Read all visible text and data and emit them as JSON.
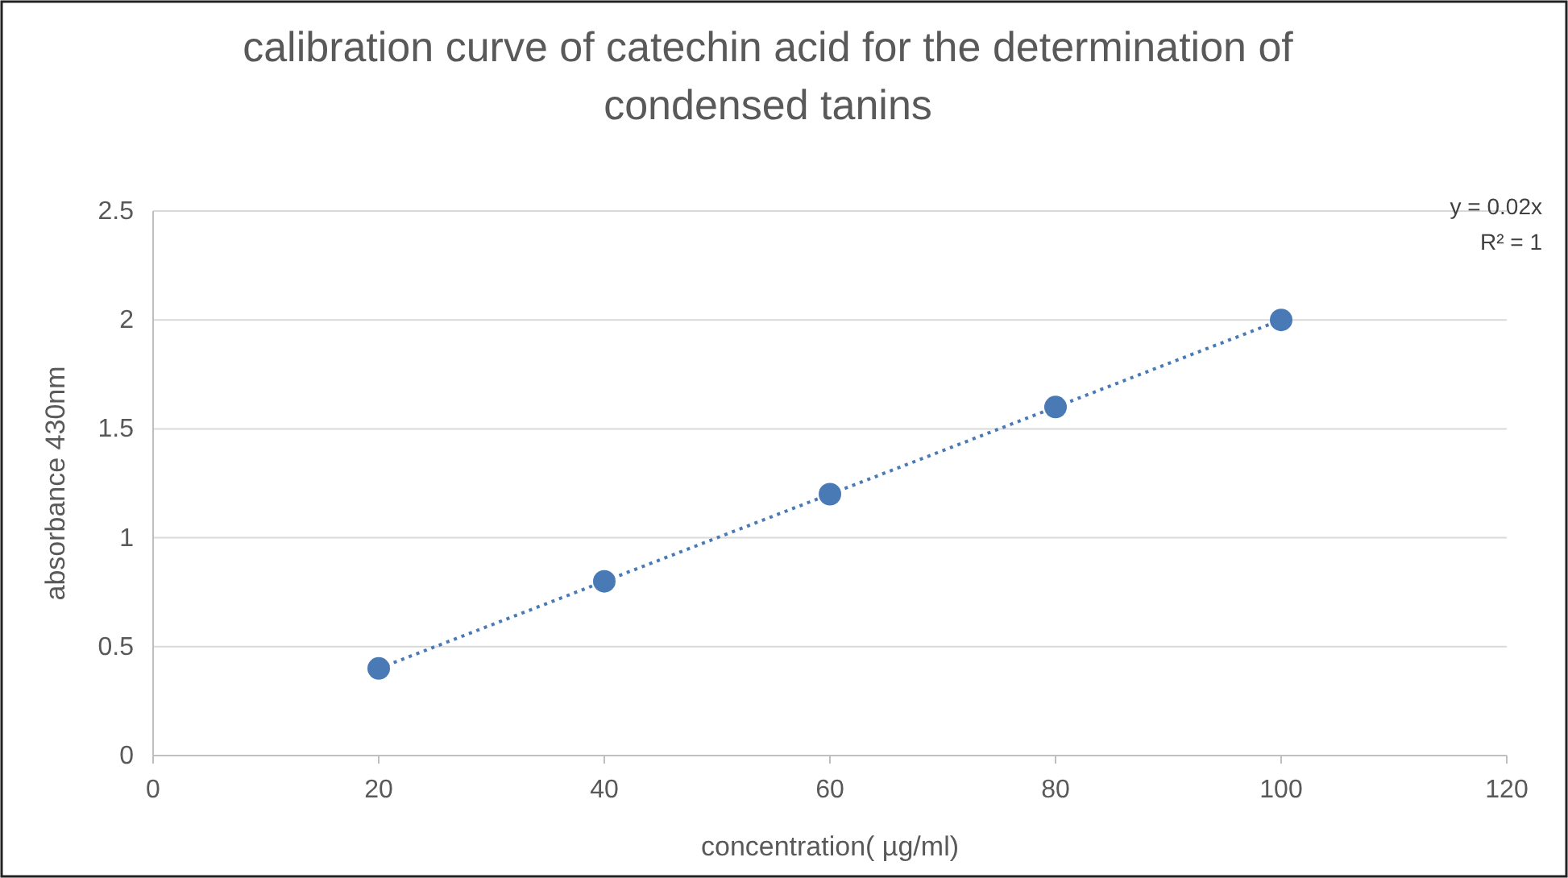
{
  "chart_data": {
    "type": "scatter",
    "title": "calibration curve of catechin acid for the determination of condensed tanins",
    "xlabel": "concentration( µg/ml)",
    "ylabel": "absorbance 430nm",
    "x": [
      20,
      40,
      60,
      80,
      100
    ],
    "series": [
      {
        "color": "#4a7ab5",
        "values": [
          0.4,
          0.8,
          1.2,
          1.6,
          2.0
        ],
        "marker": "circle"
      },
      {
        "type": "line",
        "color": "#4a7ab5",
        "x": [
          20,
          100
        ],
        "values": [
          0.4,
          2.0
        ],
        "line_style": "dotted",
        "marker": "none"
      }
    ],
    "xlim": [
      0,
      120
    ],
    "xticks": [
      0,
      20,
      40,
      60,
      80,
      100,
      120
    ],
    "ylim": [
      0,
      2.5
    ],
    "yticks": [
      0,
      0.5,
      1,
      1.5,
      2,
      2.5
    ],
    "grid": "y",
    "annotations": [
      "y = 0.02x",
      "R² = 1"
    ]
  }
}
